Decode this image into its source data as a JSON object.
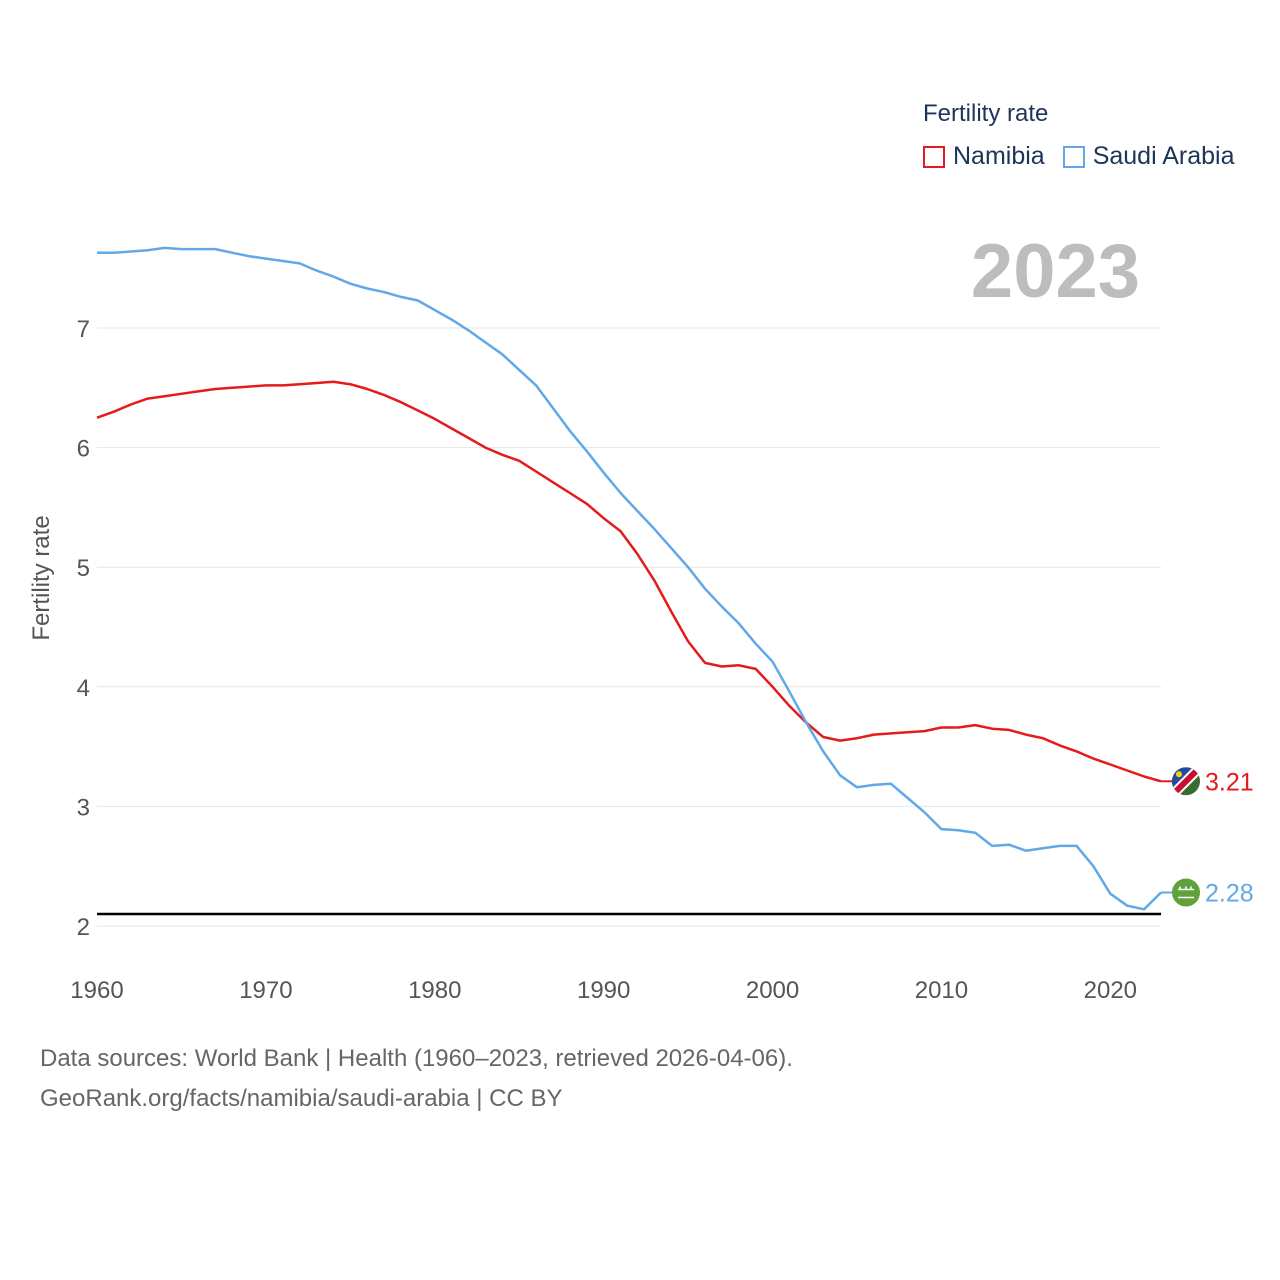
{
  "legend": {
    "title": "Fertility rate",
    "items": [
      {
        "label": "Namibia",
        "color": "#e41a1c"
      },
      {
        "label": "Saudi Arabia",
        "color": "#62a8e8"
      }
    ]
  },
  "year_label": "2023",
  "footer": {
    "line1": "Data sources: World Bank | Health (1960–2023, retrieved 2026-04-06).",
    "line2": "GeoRank.org/facts/namibia/saudi-arabia | CC BY"
  },
  "chart_data": {
    "type": "line",
    "title": "",
    "xlabel": "",
    "ylabel": "Fertility rate",
    "xlim": [
      1960,
      2023
    ],
    "ylim": [
      2,
      7.6
    ],
    "x_ticks": [
      1960,
      1970,
      1980,
      1990,
      2000,
      2010,
      2020
    ],
    "y_ticks": [
      2,
      3,
      4,
      5,
      6,
      7
    ],
    "reference_line": 2.1,
    "grid": true,
    "legend_position": "top-right",
    "x": [
      1960,
      1961,
      1962,
      1963,
      1964,
      1965,
      1966,
      1967,
      1968,
      1969,
      1970,
      1971,
      1972,
      1973,
      1974,
      1975,
      1976,
      1977,
      1978,
      1979,
      1980,
      1981,
      1982,
      1983,
      1984,
      1985,
      1986,
      1987,
      1988,
      1989,
      1990,
      1991,
      1992,
      1993,
      1994,
      1995,
      1996,
      1997,
      1998,
      1999,
      2000,
      2001,
      2002,
      2003,
      2004,
      2005,
      2006,
      2007,
      2008,
      2009,
      2010,
      2011,
      2012,
      2013,
      2014,
      2015,
      2016,
      2017,
      2018,
      2019,
      2020,
      2021,
      2022,
      2023
    ],
    "series": [
      {
        "name": "Namibia",
        "color": "#e41a1c",
        "end_label": "3.21",
        "values": [
          6.25,
          6.3,
          6.36,
          6.41,
          6.43,
          6.45,
          6.47,
          6.49,
          6.5,
          6.51,
          6.52,
          6.52,
          6.53,
          6.54,
          6.55,
          6.53,
          6.49,
          6.44,
          6.38,
          6.31,
          6.24,
          6.16,
          6.08,
          6.0,
          5.94,
          5.89,
          5.8,
          5.71,
          5.62,
          5.53,
          5.41,
          5.3,
          5.11,
          4.89,
          4.63,
          4.38,
          4.2,
          4.17,
          4.18,
          4.15,
          4.0,
          3.84,
          3.7,
          3.58,
          3.55,
          3.57,
          3.6,
          3.61,
          3.62,
          3.63,
          3.66,
          3.66,
          3.68,
          3.65,
          3.64,
          3.6,
          3.57,
          3.51,
          3.46,
          3.4,
          3.35,
          3.3,
          3.25,
          3.21
        ]
      },
      {
        "name": "Saudi Arabia",
        "color": "#62a8e8",
        "end_label": "2.28",
        "values": [
          7.63,
          7.63,
          7.64,
          7.65,
          7.67,
          7.66,
          7.66,
          7.66,
          7.63,
          7.6,
          7.58,
          7.56,
          7.54,
          7.48,
          7.43,
          7.37,
          7.33,
          7.3,
          7.26,
          7.23,
          7.15,
          7.07,
          6.98,
          6.88,
          6.78,
          6.65,
          6.52,
          6.33,
          6.14,
          5.97,
          5.79,
          5.62,
          5.47,
          5.32,
          5.16,
          5.0,
          4.82,
          4.67,
          4.53,
          4.36,
          4.21,
          3.96,
          3.7,
          3.46,
          3.26,
          3.16,
          3.18,
          3.19,
          3.07,
          2.95,
          2.81,
          2.8,
          2.78,
          2.67,
          2.68,
          2.63,
          2.65,
          2.67,
          2.67,
          2.5,
          2.27,
          2.17,
          2.14,
          2.28
        ]
      }
    ]
  }
}
